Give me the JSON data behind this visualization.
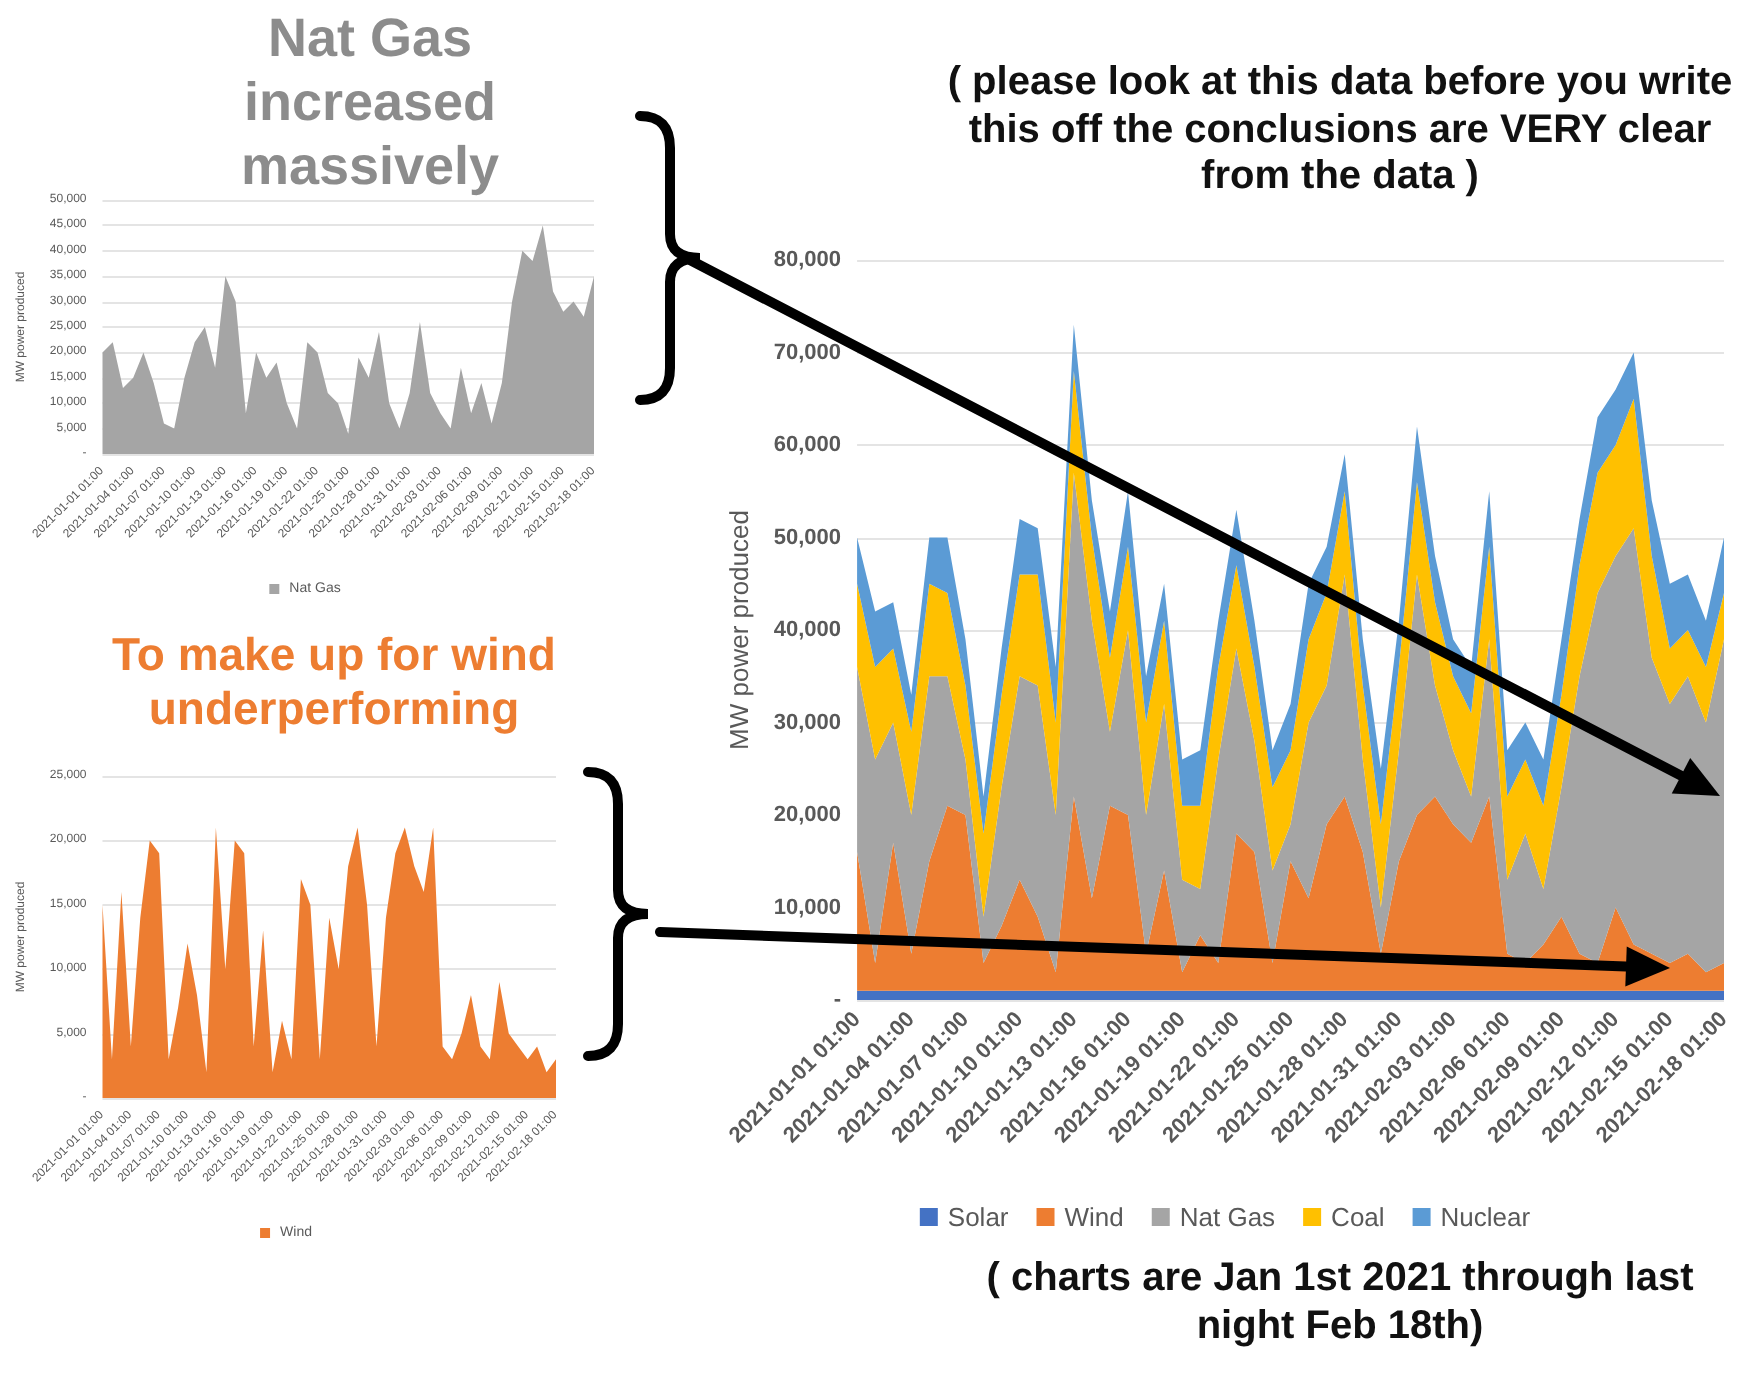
{
  "chart_data": [
    {
      "type": "area",
      "annotations": [
        "Nat Gas increased massively"
      ],
      "ylabel": "MW power produced",
      "legend": "bottom",
      "grid": "y",
      "categories": [
        "2021-01-01 01:00",
        null,
        null,
        "2021-01-04 01:00",
        null,
        null,
        "2021-01-07 01:00",
        null,
        null,
        "2021-01-10 01:00",
        null,
        null,
        "2021-01-13 01:00",
        null,
        null,
        "2021-01-16 01:00",
        null,
        null,
        "2021-01-19 01:00",
        null,
        null,
        "2021-01-22 01:00",
        null,
        null,
        "2021-01-25 01:00",
        null,
        null,
        "2021-01-28 01:00",
        null,
        null,
        "2021-01-31 01:00",
        null,
        null,
        "2021-02-03 01:00",
        null,
        null,
        "2021-02-06 01:00",
        null,
        null,
        "2021-02-09 01:00",
        null,
        null,
        "2021-02-12 01:00",
        null,
        null,
        "2021-02-15 01:00",
        null,
        null,
        "2021-02-18 01:00"
      ],
      "ylim": [
        0,
        50000
      ],
      "yticks": [
        {
          "value": 0,
          "label": "-"
        },
        {
          "value": 5000,
          "label": "5,000"
        },
        {
          "value": 10000,
          "label": "10,000"
        },
        {
          "value": 15000,
          "label": "15,000"
        },
        {
          "value": 20000,
          "label": "20,000"
        },
        {
          "value": 25000,
          "label": "25,000"
        },
        {
          "value": 30000,
          "label": "30,000"
        },
        {
          "value": 35000,
          "label": "35,000"
        },
        {
          "value": 40000,
          "label": "40,000"
        },
        {
          "value": 45000,
          "label": "45,000"
        },
        {
          "value": 50000,
          "label": "50,000"
        }
      ],
      "series": [
        {
          "name": "Nat Gas",
          "color": "#a5a5a5",
          "values": [
            20000,
            22000,
            13000,
            15000,
            20000,
            14000,
            6000,
            5000,
            15000,
            22000,
            25000,
            17000,
            35000,
            30000,
            8000,
            20000,
            15000,
            18000,
            10000,
            5000,
            22000,
            20000,
            12000,
            10000,
            4000,
            19000,
            15000,
            24000,
            10000,
            5000,
            12000,
            26000,
            12000,
            8000,
            5000,
            17000,
            8000,
            14000,
            6000,
            14000,
            30000,
            40000,
            38000,
            45000,
            32000,
            28000,
            30000,
            27000,
            35000
          ]
        }
      ]
    },
    {
      "type": "area",
      "annotations": [
        "To make up for wind underperforming"
      ],
      "ylabel": "MW power produced",
      "legend": "bottom",
      "grid": "y",
      "categories": [
        "2021-01-01 01:00",
        null,
        null,
        "2021-01-04 01:00",
        null,
        null,
        "2021-01-07 01:00",
        null,
        null,
        "2021-01-10 01:00",
        null,
        null,
        "2021-01-13 01:00",
        null,
        null,
        "2021-01-16 01:00",
        null,
        null,
        "2021-01-19 01:00",
        null,
        null,
        "2021-01-22 01:00",
        null,
        null,
        "2021-01-25 01:00",
        null,
        null,
        "2021-01-28 01:00",
        null,
        null,
        "2021-01-31 01:00",
        null,
        null,
        "2021-02-03 01:00",
        null,
        null,
        "2021-02-06 01:00",
        null,
        null,
        "2021-02-09 01:00",
        null,
        null,
        "2021-02-12 01:00",
        null,
        null,
        "2021-02-15 01:00",
        null,
        null,
        "2021-02-18 01:00"
      ],
      "ylim": [
        0,
        25000
      ],
      "yticks": [
        {
          "value": 0,
          "label": "-"
        },
        {
          "value": 5000,
          "label": "5,000"
        },
        {
          "value": 10000,
          "label": "10,000"
        },
        {
          "value": 15000,
          "label": "15,000"
        },
        {
          "value": 20000,
          "label": "20,000"
        },
        {
          "value": 25000,
          "label": "25,000"
        }
      ],
      "series": [
        {
          "name": "Wind",
          "color": "#ed7d31",
          "values": [
            15000,
            3000,
            16000,
            4000,
            14000,
            20000,
            19000,
            3000,
            7000,
            12000,
            8000,
            2000,
            21000,
            10000,
            20000,
            19000,
            4000,
            13000,
            2000,
            6000,
            3000,
            17000,
            15000,
            3000,
            14000,
            10000,
            18000,
            21000,
            15000,
            4000,
            14000,
            19000,
            21000,
            18000,
            16000,
            21000,
            4000,
            3000,
            5000,
            8000,
            4000,
            3000,
            9000,
            5000,
            4000,
            3000,
            4000,
            2000,
            3000
          ]
        }
      ]
    },
    {
      "type": "area",
      "stacked": true,
      "annotations": [
        "( please look at this data before you write this off the conclusions are VERY clear from the data )",
        "( charts are Jan 1st 2021 through last night Feb 18th)"
      ],
      "ylabel": "MW power produced",
      "legend": "bottom",
      "grid": "y",
      "categories": [
        "2021-01-01 01:00",
        null,
        null,
        "2021-01-04 01:00",
        null,
        null,
        "2021-01-07 01:00",
        null,
        null,
        "2021-01-10 01:00",
        null,
        null,
        "2021-01-13 01:00",
        null,
        null,
        "2021-01-16 01:00",
        null,
        null,
        "2021-01-19 01:00",
        null,
        null,
        "2021-01-22 01:00",
        null,
        null,
        "2021-01-25 01:00",
        null,
        null,
        "2021-01-28 01:00",
        null,
        null,
        "2021-01-31 01:00",
        null,
        null,
        "2021-02-03 01:00",
        null,
        null,
        "2021-02-06 01:00",
        null,
        null,
        "2021-02-09 01:00",
        null,
        null,
        "2021-02-12 01:00",
        null,
        null,
        "2021-02-15 01:00",
        null,
        null,
        "2021-02-18 01:00"
      ],
      "ylim": [
        0,
        80000
      ],
      "yticks": [
        {
          "value": 0,
          "label": "-"
        },
        {
          "value": 10000,
          "label": "10,000"
        },
        {
          "value": 20000,
          "label": "20,000"
        },
        {
          "value": 30000,
          "label": "30,000"
        },
        {
          "value": 40000,
          "label": "40,000"
        },
        {
          "value": 50000,
          "label": "50,000"
        },
        {
          "value": 60000,
          "label": "60,000"
        },
        {
          "value": 70000,
          "label": "70,000"
        },
        {
          "value": 80000,
          "label": "80,000"
        }
      ],
      "series": [
        {
          "name": "Solar",
          "color": "#4472c4",
          "values": [
            1000,
            1000,
            1000,
            1000,
            1000,
            1000,
            1000,
            1000,
            1000,
            1000,
            1000,
            1000,
            1000,
            1000,
            1000,
            1000,
            1000,
            1000,
            1000,
            1000,
            1000,
            1000,
            1000,
            1000,
            1000,
            1000,
            1000,
            1000,
            1000,
            1000,
            1000,
            1000,
            1000,
            1000,
            1000,
            1000,
            1000,
            1000,
            1000,
            1000,
            1000,
            1000,
            1000,
            1000,
            1000,
            1000,
            1000,
            1000,
            1000
          ]
        },
        {
          "name": "Wind",
          "color": "#ed7d31",
          "values": [
            15000,
            3000,
            16000,
            4000,
            14000,
            20000,
            19000,
            3000,
            7000,
            12000,
            8000,
            2000,
            21000,
            10000,
            20000,
            19000,
            4000,
            13000,
            2000,
            6000,
            3000,
            17000,
            15000,
            3000,
            14000,
            10000,
            18000,
            21000,
            15000,
            4000,
            14000,
            19000,
            21000,
            18000,
            16000,
            21000,
            4000,
            3000,
            5000,
            8000,
            4000,
            3000,
            9000,
            5000,
            4000,
            3000,
            4000,
            2000,
            3000
          ]
        },
        {
          "name": "Nat Gas",
          "color": "#a5a5a5",
          "values": [
            20000,
            22000,
            13000,
            15000,
            20000,
            14000,
            6000,
            5000,
            15000,
            22000,
            25000,
            17000,
            35000,
            30000,
            8000,
            20000,
            15000,
            18000,
            10000,
            5000,
            22000,
            20000,
            12000,
            10000,
            4000,
            19000,
            15000,
            24000,
            10000,
            5000,
            12000,
            26000,
            12000,
            8000,
            5000,
            17000,
            8000,
            14000,
            6000,
            14000,
            30000,
            40000,
            38000,
            45000,
            32000,
            28000,
            30000,
            27000,
            35000
          ]
        },
        {
          "name": "Coal",
          "color": "#ffc000",
          "values": [
            9000,
            10000,
            8000,
            9000,
            10000,
            9000,
            8000,
            9000,
            10000,
            11000,
            12000,
            10000,
            11000,
            9000,
            8000,
            9000,
            10000,
            9000,
            8000,
            9000,
            10000,
            9000,
            8000,
            9000,
            8000,
            9000,
            10000,
            9000,
            8000,
            9000,
            9000,
            10000,
            9000,
            8000,
            9000,
            10000,
            9000,
            8000,
            9000,
            10000,
            12000,
            13000,
            12000,
            14000,
            11000,
            6000,
            5000,
            6000,
            5000
          ]
        },
        {
          "name": "Nuclear",
          "color": "#5b9bd5",
          "values": [
            5000,
            6000,
            5000,
            4000,
            5000,
            6000,
            5000,
            4000,
            5000,
            6000,
            5000,
            6000,
            5000,
            4000,
            5000,
            6000,
            5000,
            4000,
            5000,
            6000,
            5000,
            6000,
            5000,
            4000,
            5000,
            6000,
            5000,
            4000,
            5000,
            6000,
            5000,
            6000,
            5000,
            4000,
            5000,
            6000,
            5000,
            4000,
            5000,
            6000,
            5000,
            6000,
            6000,
            5000,
            6000,
            7000,
            6000,
            5000,
            6000
          ]
        }
      ]
    }
  ]
}
